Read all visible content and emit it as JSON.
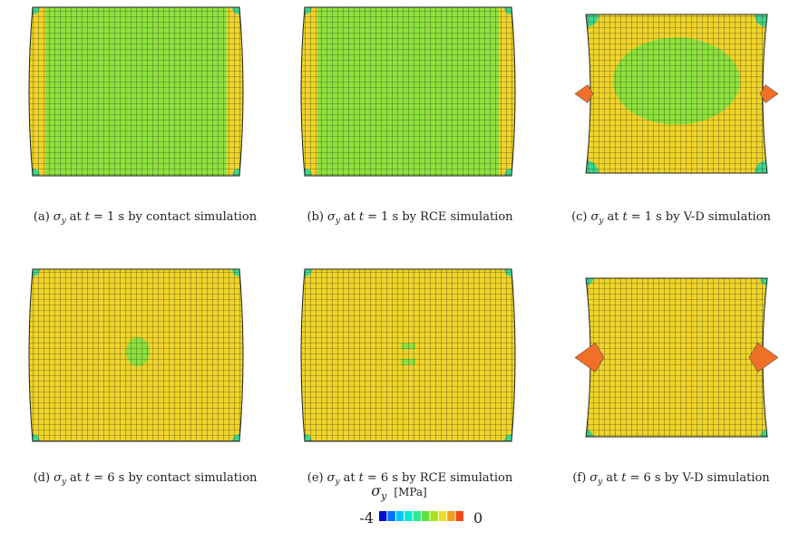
{
  "panels": [
    {
      "caption": {
        "label": "(a)",
        "var": "σ",
        "sub": "y",
        "at": "at",
        "tvar": "t",
        "rest": "= 1 s by contact simulation"
      }
    },
    {
      "caption": {
        "label": "(b)",
        "var": "σ",
        "sub": "y",
        "at": "at",
        "tvar": "t",
        "rest": "= 1 s by RCE simulation"
      }
    },
    {
      "caption": {
        "label": "(c)",
        "var": "σ",
        "sub": "y",
        "at": "at",
        "tvar": "t",
        "rest": "= 1 s by V-D simulation"
      }
    },
    {
      "caption": {
        "label": "(d)",
        "var": "σ",
        "sub": "y",
        "at": "at",
        "tvar": "t",
        "rest": "= 6 s by contact simulation"
      }
    },
    {
      "caption": {
        "label": "(e)",
        "var": "σ",
        "sub": "y",
        "at": "at",
        "tvar": "t",
        "rest": "= 6 s by RCE simulation"
      }
    },
    {
      "caption": {
        "label": "(f)",
        "var": "σ",
        "sub": "y",
        "at": "at",
        "tvar": "t",
        "rest": "= 6 s by V-D simulation"
      }
    }
  ],
  "colorbar": {
    "var": "σ",
    "sub": "y",
    "unit": "[MPa]",
    "min_label": "-4",
    "max_label": "0",
    "colors": [
      "#0010c8",
      "#0070ff",
      "#00c8ff",
      "#00e8d0",
      "#30e890",
      "#60e040",
      "#a8e020",
      "#e8e020",
      "#f0a020",
      "#f04818"
    ]
  }
}
